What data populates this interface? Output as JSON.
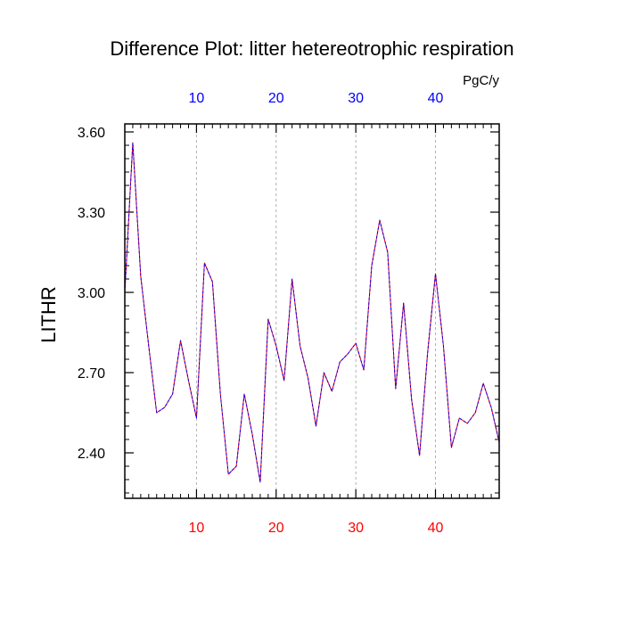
{
  "chart_data": {
    "type": "line",
    "title": "Difference Plot: litter hetereotrophic respiration",
    "units": "PgC/y",
    "ylabel": "LITHR",
    "xlim": [
      1,
      48
    ],
    "ylim": [
      2.23,
      3.63
    ],
    "x_ticks": [
      10,
      20,
      30,
      40
    ],
    "x_tick_labels": [
      "10",
      "20",
      "30",
      "40"
    ],
    "y_ticks": [
      2.4,
      2.7,
      3.0,
      3.3,
      3.6
    ],
    "y_tick_labels": [
      "2.40",
      "2.70",
      "3.00",
      "3.30",
      "3.60"
    ],
    "grid": "x-dashed",
    "colors": {
      "bottom_ticks": "#ff0000",
      "top_ticks": "#0000ff",
      "series_a": "#ff0000",
      "series_b": "#0000ff"
    },
    "x": [
      1,
      2,
      3,
      4,
      5,
      6,
      7,
      8,
      9,
      10,
      11,
      12,
      13,
      14,
      15,
      16,
      17,
      18,
      19,
      20,
      21,
      22,
      23,
      24,
      25,
      26,
      27,
      28,
      29,
      30,
      31,
      32,
      33,
      34,
      35,
      36,
      37,
      38,
      39,
      40,
      41,
      42,
      43,
      44,
      45,
      46,
      47,
      48
    ],
    "series": [
      {
        "values": [
          3.0,
          3.56,
          3.06,
          2.8,
          2.55,
          2.57,
          2.62,
          2.82,
          2.67,
          2.53,
          3.11,
          3.04,
          2.62,
          2.32,
          2.35,
          2.62,
          2.47,
          2.29,
          2.9,
          2.8,
          2.67,
          3.05,
          2.8,
          2.68,
          2.5,
          2.7,
          2.63,
          2.74,
          2.77,
          2.81,
          2.71,
          3.1,
          3.27,
          3.15,
          2.64,
          2.96,
          2.6,
          2.39,
          2.77,
          3.07,
          2.8,
          2.42,
          2.53,
          2.51,
          2.55,
          2.66,
          2.57,
          2.44
        ]
      },
      {
        "values": [
          3.0,
          3.56,
          3.06,
          2.8,
          2.55,
          2.57,
          2.62,
          2.82,
          2.67,
          2.53,
          3.11,
          3.04,
          2.62,
          2.32,
          2.35,
          2.62,
          2.47,
          2.29,
          2.9,
          2.8,
          2.67,
          3.05,
          2.8,
          2.68,
          2.5,
          2.7,
          2.63,
          2.74,
          2.77,
          2.81,
          2.71,
          3.1,
          3.27,
          3.15,
          2.64,
          2.96,
          2.6,
          2.39,
          2.77,
          3.07,
          2.8,
          2.42,
          2.53,
          2.51,
          2.55,
          2.66,
          2.57,
          2.44
        ]
      }
    ]
  }
}
